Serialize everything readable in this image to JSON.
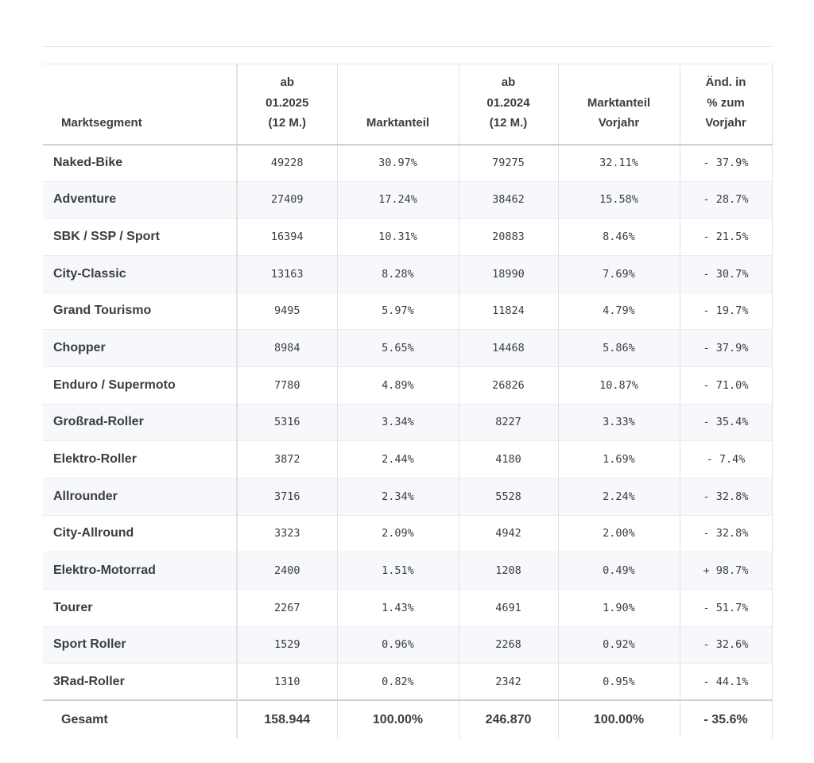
{
  "table": {
    "header": [
      [
        "Marktsegment"
      ],
      [
        "ab",
        "01.2025",
        "(12 M.)"
      ],
      [
        "Marktanteil"
      ],
      [
        "ab",
        "01.2024",
        "(12 M.)"
      ],
      [
        "Marktanteil",
        "Vorjahr"
      ],
      [
        "Änd. in",
        "% zum",
        "Vorjahr"
      ]
    ],
    "rows": [
      [
        "Naked-Bike",
        "49228",
        "30.97%",
        "79275",
        "32.11%",
        "- 37.9%"
      ],
      [
        "Adventure",
        "27409",
        "17.24%",
        "38462",
        "15.58%",
        "- 28.7%"
      ],
      [
        "SBK / SSP / Sport",
        "16394",
        "10.31%",
        "20883",
        "8.46%",
        "- 21.5%"
      ],
      [
        "City-Classic",
        "13163",
        "8.28%",
        "18990",
        "7.69%",
        "- 30.7%"
      ],
      [
        "Grand Tourismo",
        "9495",
        "5.97%",
        "11824",
        "4.79%",
        "- 19.7%"
      ],
      [
        "Chopper",
        "8984",
        "5.65%",
        "14468",
        "5.86%",
        "- 37.9%"
      ],
      [
        "Enduro / Supermoto",
        "7780",
        "4.89%",
        "26826",
        "10.87%",
        "- 71.0%"
      ],
      [
        "Großrad-Roller",
        "5316",
        "3.34%",
        "8227",
        "3.33%",
        "- 35.4%"
      ],
      [
        "Elektro-Roller",
        "3872",
        "2.44%",
        "4180",
        "1.69%",
        "- 7.4%"
      ],
      [
        "Allrounder",
        "3716",
        "2.34%",
        "5528",
        "2.24%",
        "- 32.8%"
      ],
      [
        "City-Allround",
        "3323",
        "2.09%",
        "4942",
        "2.00%",
        "- 32.8%"
      ],
      [
        "Elektro-Motorrad",
        "2400",
        "1.51%",
        "1208",
        "0.49%",
        "+ 98.7%"
      ],
      [
        "Tourer",
        "2267",
        "1.43%",
        "4691",
        "1.90%",
        "- 51.7%"
      ],
      [
        "Sport Roller",
        "1529",
        "0.96%",
        "2268",
        "0.92%",
        "- 32.6%"
      ],
      [
        "3Rad-Roller",
        "1310",
        "0.82%",
        "2342",
        "0.95%",
        "- 44.1%"
      ]
    ],
    "footer": [
      "Gesamt",
      "158.944",
      "100.00%",
      "246.870",
      "100.00%",
      "- 35.6%"
    ]
  }
}
